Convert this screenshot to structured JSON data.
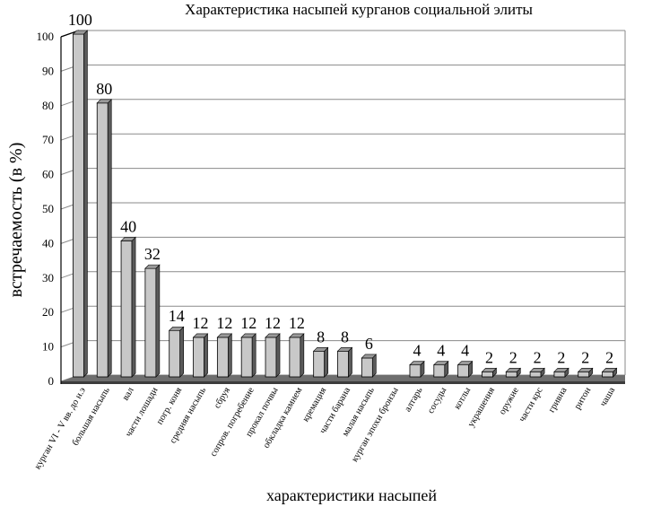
{
  "chart_data": {
    "type": "bar",
    "title": "Характеристика насыпей курганов социальной элиты",
    "xlabel": "характеристики насыпей",
    "ylabel": "встречаемость (в %)",
    "ylim": [
      0,
      100
    ],
    "yticks": [
      "0",
      "10",
      "20",
      "30",
      "40",
      "50",
      "60",
      "70",
      "80",
      "90",
      "100"
    ],
    "grid": true,
    "legend": "none",
    "categories": [
      "курган VI - V вв. до н.э",
      "большая насыпь",
      "вал",
      "части лошади",
      "погр. коня",
      "средняя насыпь",
      "сбруя",
      "сопров. погребение",
      "прокал почвы",
      "обкладка камнем",
      "кремация",
      "части барана",
      "малая насыпь",
      "курган эпохи бронзы",
      "алтарь",
      "сосуды",
      "котлы",
      "украшения",
      "оружие",
      "части крс",
      "гривна",
      "ритон",
      "чаша"
    ],
    "values": [
      100,
      80,
      40,
      32,
      14,
      12,
      12,
      12,
      12,
      12,
      8,
      8,
      6,
      0,
      4,
      4,
      4,
      2,
      2,
      2,
      2,
      2,
      2
    ],
    "data_labels": [
      "100",
      "80",
      "40",
      "32",
      "14",
      "12",
      "12",
      "12",
      "12",
      "12",
      "8",
      "8",
      "6",
      "",
      "4",
      "4",
      "4",
      "2",
      "2",
      "2",
      "2",
      "2",
      "2"
    ],
    "colors": {
      "bar_front": "#c8c8c8",
      "bar_side": "#5a5a5a",
      "bar_top": "#9a9a9a",
      "floor": "#6e6e6e",
      "floor_dark": "#3c3c3c",
      "wall": "#ffffff"
    }
  }
}
